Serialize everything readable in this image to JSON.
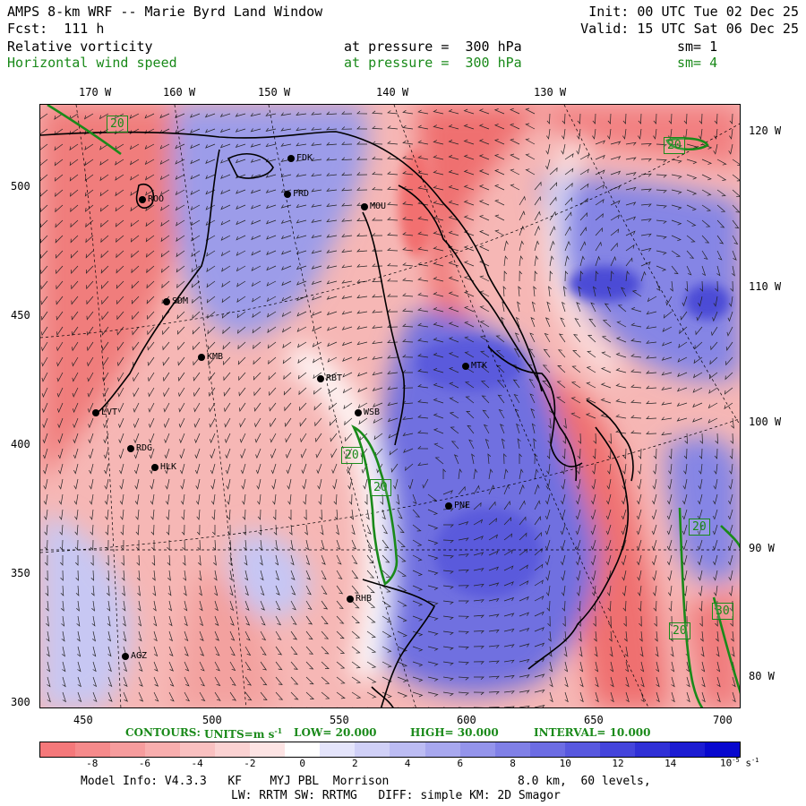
{
  "header": {
    "title": "AMPS 8-km WRF -- Marie Byrd Land Window",
    "forecast": "Fcst:  111 h",
    "init": "Init: 00 UTC Tue 02 Dec 25",
    "valid": "Valid: 15 UTC Sat 06 Dec 25",
    "field1": {
      "name": "Relative vorticity",
      "pressure": "at pressure =  300 hPa",
      "sm": "sm= 1"
    },
    "field2": {
      "name": "Horizontal wind speed",
      "pressure": "at pressure =  300 hPa",
      "sm": "sm= 4"
    }
  },
  "map": {
    "lon_top": [
      "170 W",
      "160 W",
      "150 W",
      "140 W",
      "130 W"
    ],
    "lon_right": [
      "120 W",
      "110 W",
      "100 W",
      "90 W",
      "80 W"
    ],
    "y_axis": [
      "500",
      "450",
      "400",
      "350",
      "300"
    ],
    "x_axis": [
      "450",
      "500",
      "550",
      "600",
      "650",
      "700"
    ],
    "stations": [
      "FDK",
      "FRD",
      "MOU",
      "ROO",
      "SDM",
      "KMB",
      "RBT",
      "WSB",
      "MTK",
      "LVT",
      "RDG",
      "HLK",
      "PNE",
      "RHB",
      "AGZ"
    ],
    "contour_labels": [
      "20",
      "20",
      "20",
      "20",
      "20",
      "20",
      "30"
    ],
    "colors": {
      "positive": "#e9494b",
      "negative": "#3c38d8",
      "contour": "#1a8a1a"
    }
  },
  "contour_info": {
    "label": "CONTOURS:",
    "units": "UNITS=m s",
    "units_sup": "-1",
    "low": "LOW= 20.000",
    "high": "HIGH= 30.000",
    "interval": "INTERVAL= 10.000"
  },
  "colorbar": {
    "ticks": [
      "-8",
      "-6",
      "-4",
      "-2",
      "0",
      "2",
      "4",
      "6",
      "8",
      "10",
      "12",
      "14"
    ],
    "unit_prefix": "10",
    "unit_exp": "-5",
    "unit_suffix": "s",
    "unit_suffix_exp": "-1",
    "colors": [
      "#f4787a",
      "#f58a8b",
      "#f69c9d",
      "#f8aeae",
      "#f9c0c0",
      "#fbd2d2",
      "#fde4e4",
      "#ffffff",
      "#e4e4fb",
      "#d0d0f7",
      "#bcbcf3",
      "#a8a8ef",
      "#9494eb",
      "#8080e7",
      "#6c6ce3",
      "#5858df",
      "#4444db",
      "#3030d6",
      "#1c1cd2",
      "#0808ce"
    ]
  },
  "footer": {
    "line1a": "Model Info: V4.3.3   KF    MYJ PBL  Morrison",
    "line1b": "8.0 km,  60 levels,",
    "line2": "LW: RRTM SW: RRTMG   DIFF: simple KM: 2D Smagor"
  }
}
